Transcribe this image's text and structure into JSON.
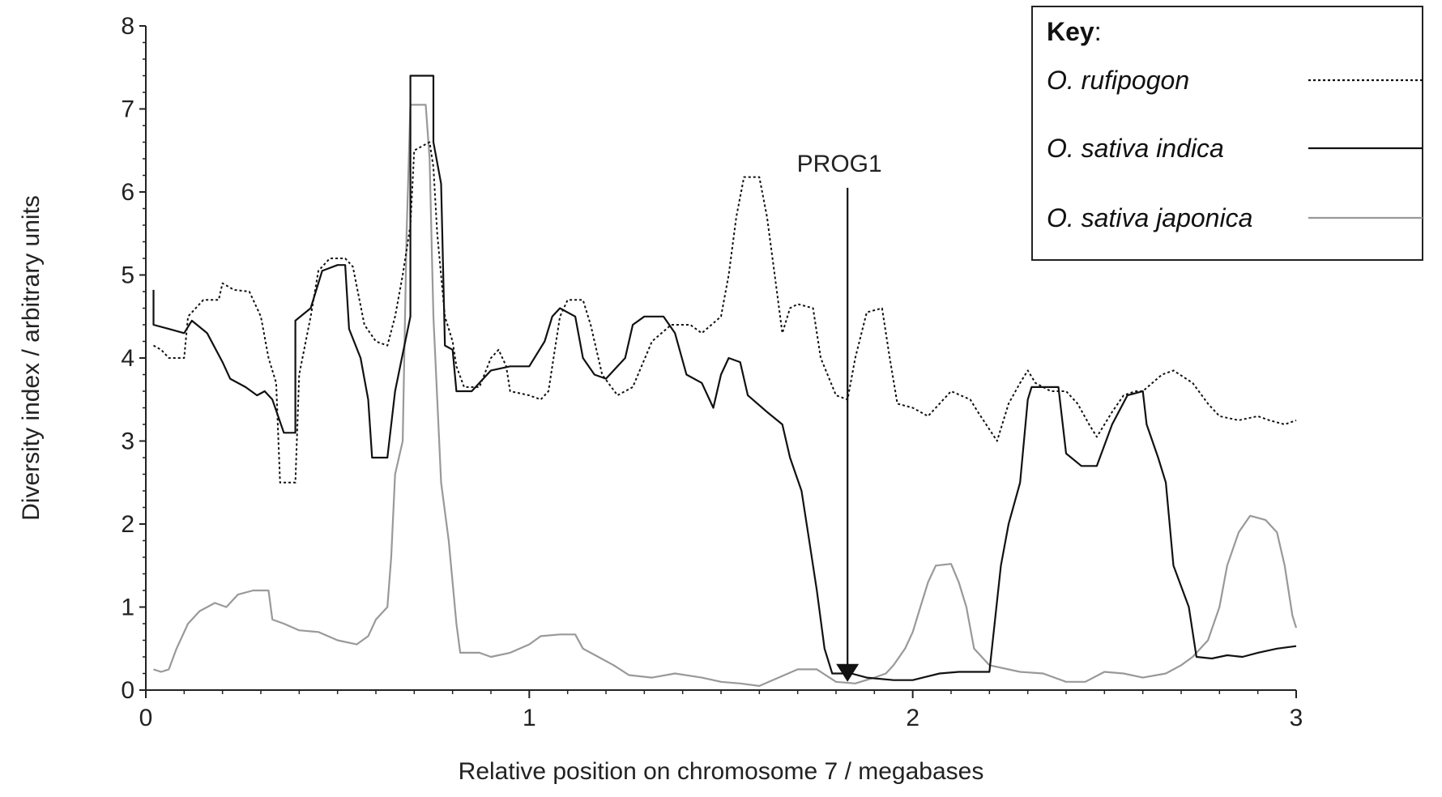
{
  "chart_data": {
    "type": "line",
    "xlabel": "Relative position on chromosome 7 / megabases",
    "ylabel": "Diversity index / arbitrary units",
    "xlim": [
      0,
      3
    ],
    "ylim": [
      0,
      8
    ],
    "x_ticks": [
      0,
      1,
      2,
      3
    ],
    "y_ticks": [
      0,
      1,
      2,
      3,
      4,
      5,
      6,
      7,
      8
    ],
    "grid": false,
    "legend": {
      "title": "Key",
      "title_suffix": ":",
      "placement": "top-right"
    },
    "annotation": {
      "label": "PROG1",
      "x": 1.83,
      "y_start": 6.05,
      "y_end": 0.1
    },
    "series": [
      {
        "name": "O. rufipogon",
        "style": "dotted",
        "color": "#111111",
        "points": [
          [
            0.02,
            4.15
          ],
          [
            0.04,
            4.1
          ],
          [
            0.06,
            4.0
          ],
          [
            0.1,
            4.0
          ],
          [
            0.11,
            4.5
          ],
          [
            0.15,
            4.7
          ],
          [
            0.19,
            4.7
          ],
          [
            0.2,
            4.9
          ],
          [
            0.23,
            4.82
          ],
          [
            0.27,
            4.8
          ],
          [
            0.3,
            4.5
          ],
          [
            0.32,
            4.0
          ],
          [
            0.34,
            3.7
          ],
          [
            0.35,
            2.5
          ],
          [
            0.39,
            2.5
          ],
          [
            0.4,
            3.8
          ],
          [
            0.43,
            4.5
          ],
          [
            0.45,
            5.05
          ],
          [
            0.48,
            5.2
          ],
          [
            0.52,
            5.2
          ],
          [
            0.54,
            5.1
          ],
          [
            0.57,
            4.4
          ],
          [
            0.6,
            4.2
          ],
          [
            0.63,
            4.15
          ],
          [
            0.65,
            4.5
          ],
          [
            0.67,
            5.0
          ],
          [
            0.68,
            5.3
          ],
          [
            0.69,
            5.6
          ],
          [
            0.7,
            6.5
          ],
          [
            0.72,
            6.55
          ],
          [
            0.74,
            6.6
          ],
          [
            0.75,
            6.3
          ],
          [
            0.76,
            5.5
          ],
          [
            0.78,
            4.5
          ],
          [
            0.8,
            4.2
          ],
          [
            0.81,
            3.9
          ],
          [
            0.83,
            3.65
          ],
          [
            0.87,
            3.65
          ],
          [
            0.9,
            4.0
          ],
          [
            0.92,
            4.1
          ],
          [
            0.94,
            3.9
          ],
          [
            0.95,
            3.6
          ],
          [
            1.0,
            3.55
          ],
          [
            1.03,
            3.5
          ],
          [
            1.05,
            3.6
          ],
          [
            1.08,
            4.5
          ],
          [
            1.1,
            4.7
          ],
          [
            1.14,
            4.7
          ],
          [
            1.16,
            4.4
          ],
          [
            1.19,
            3.8
          ],
          [
            1.23,
            3.55
          ],
          [
            1.27,
            3.65
          ],
          [
            1.32,
            4.2
          ],
          [
            1.37,
            4.4
          ],
          [
            1.42,
            4.4
          ],
          [
            1.45,
            4.3
          ],
          [
            1.5,
            4.5
          ],
          [
            1.52,
            5.0
          ],
          [
            1.54,
            5.7
          ],
          [
            1.56,
            6.18
          ],
          [
            1.6,
            6.18
          ],
          [
            1.62,
            5.7
          ],
          [
            1.64,
            5.0
          ],
          [
            1.66,
            4.3
          ],
          [
            1.68,
            4.6
          ],
          [
            1.7,
            4.65
          ],
          [
            1.74,
            4.6
          ],
          [
            1.76,
            4.0
          ],
          [
            1.8,
            3.55
          ],
          [
            1.83,
            3.5
          ],
          [
            1.85,
            4.0
          ],
          [
            1.88,
            4.55
          ],
          [
            1.92,
            4.6
          ],
          [
            1.94,
            4.0
          ],
          [
            1.96,
            3.45
          ],
          [
            2.0,
            3.4
          ],
          [
            2.04,
            3.3
          ],
          [
            2.07,
            3.45
          ],
          [
            2.1,
            3.6
          ],
          [
            2.15,
            3.5
          ],
          [
            2.17,
            3.35
          ],
          [
            2.22,
            3.0
          ],
          [
            2.25,
            3.45
          ],
          [
            2.28,
            3.7
          ],
          [
            2.3,
            3.85
          ],
          [
            2.32,
            3.7
          ],
          [
            2.36,
            3.6
          ],
          [
            2.4,
            3.6
          ],
          [
            2.43,
            3.45
          ],
          [
            2.46,
            3.2
          ],
          [
            2.48,
            3.05
          ],
          [
            2.52,
            3.35
          ],
          [
            2.55,
            3.55
          ],
          [
            2.58,
            3.6
          ],
          [
            2.6,
            3.6
          ],
          [
            2.65,
            3.8
          ],
          [
            2.68,
            3.85
          ],
          [
            2.73,
            3.7
          ],
          [
            2.77,
            3.45
          ],
          [
            2.8,
            3.3
          ],
          [
            2.85,
            3.25
          ],
          [
            2.9,
            3.3
          ],
          [
            2.93,
            3.25
          ],
          [
            2.97,
            3.2
          ],
          [
            3.0,
            3.25
          ]
        ]
      },
      {
        "name": "O. sativa indica",
        "style": "solid",
        "color": "#111111",
        "points": [
          [
            0.02,
            4.82
          ],
          [
            0.02,
            4.4
          ],
          [
            0.06,
            4.35
          ],
          [
            0.1,
            4.3
          ],
          [
            0.12,
            4.45
          ],
          [
            0.16,
            4.3
          ],
          [
            0.2,
            3.95
          ],
          [
            0.22,
            3.75
          ],
          [
            0.26,
            3.65
          ],
          [
            0.29,
            3.55
          ],
          [
            0.31,
            3.6
          ],
          [
            0.33,
            3.5
          ],
          [
            0.36,
            3.1
          ],
          [
            0.39,
            3.1
          ],
          [
            0.39,
            4.45
          ],
          [
            0.43,
            4.6
          ],
          [
            0.46,
            5.05
          ],
          [
            0.5,
            5.12
          ],
          [
            0.52,
            5.12
          ],
          [
            0.53,
            4.35
          ],
          [
            0.56,
            4.0
          ],
          [
            0.58,
            3.5
          ],
          [
            0.59,
            2.8
          ],
          [
            0.63,
            2.8
          ],
          [
            0.65,
            3.6
          ],
          [
            0.67,
            4.05
          ],
          [
            0.69,
            4.5
          ],
          [
            0.69,
            7.4
          ],
          [
            0.75,
            7.4
          ],
          [
            0.75,
            6.6
          ],
          [
            0.77,
            6.1
          ],
          [
            0.78,
            4.15
          ],
          [
            0.8,
            4.1
          ],
          [
            0.81,
            3.6
          ],
          [
            0.85,
            3.6
          ],
          [
            0.9,
            3.85
          ],
          [
            0.95,
            3.9
          ],
          [
            1.0,
            3.9
          ],
          [
            1.04,
            4.2
          ],
          [
            1.06,
            4.5
          ],
          [
            1.08,
            4.6
          ],
          [
            1.12,
            4.5
          ],
          [
            1.14,
            4.0
          ],
          [
            1.17,
            3.8
          ],
          [
            1.2,
            3.75
          ],
          [
            1.25,
            4.0
          ],
          [
            1.27,
            4.4
          ],
          [
            1.3,
            4.5
          ],
          [
            1.35,
            4.5
          ],
          [
            1.38,
            4.3
          ],
          [
            1.41,
            3.8
          ],
          [
            1.45,
            3.7
          ],
          [
            1.48,
            3.4
          ],
          [
            1.5,
            3.8
          ],
          [
            1.52,
            4.0
          ],
          [
            1.55,
            3.95
          ],
          [
            1.57,
            3.55
          ],
          [
            1.62,
            3.35
          ],
          [
            1.66,
            3.2
          ],
          [
            1.68,
            2.8
          ],
          [
            1.71,
            2.4
          ],
          [
            1.73,
            1.8
          ],
          [
            1.75,
            1.2
          ],
          [
            1.77,
            0.5
          ],
          [
            1.79,
            0.2
          ],
          [
            1.84,
            0.2
          ],
          [
            1.88,
            0.15
          ],
          [
            1.95,
            0.12
          ],
          [
            2.0,
            0.12
          ],
          [
            2.07,
            0.2
          ],
          [
            2.12,
            0.22
          ],
          [
            2.2,
            0.22
          ],
          [
            2.23,
            1.5
          ],
          [
            2.25,
            2.0
          ],
          [
            2.28,
            2.5
          ],
          [
            2.3,
            3.5
          ],
          [
            2.31,
            3.65
          ],
          [
            2.38,
            3.65
          ],
          [
            2.4,
            2.85
          ],
          [
            2.44,
            2.7
          ],
          [
            2.48,
            2.7
          ],
          [
            2.52,
            3.2
          ],
          [
            2.56,
            3.55
          ],
          [
            2.6,
            3.6
          ],
          [
            2.61,
            3.2
          ],
          [
            2.64,
            2.8
          ],
          [
            2.66,
            2.5
          ],
          [
            2.68,
            1.5
          ],
          [
            2.72,
            1.0
          ],
          [
            2.74,
            0.4
          ],
          [
            2.78,
            0.38
          ],
          [
            2.82,
            0.42
          ],
          [
            2.86,
            0.4
          ],
          [
            2.9,
            0.45
          ],
          [
            2.95,
            0.5
          ],
          [
            3.0,
            0.53
          ]
        ]
      },
      {
        "name": "O. sativa japonica",
        "style": "solid",
        "color": "#999999",
        "points": [
          [
            0.02,
            0.25
          ],
          [
            0.04,
            0.22
          ],
          [
            0.06,
            0.25
          ],
          [
            0.08,
            0.5
          ],
          [
            0.11,
            0.8
          ],
          [
            0.14,
            0.95
          ],
          [
            0.18,
            1.05
          ],
          [
            0.21,
            1.0
          ],
          [
            0.24,
            1.15
          ],
          [
            0.28,
            1.2
          ],
          [
            0.32,
            1.2
          ],
          [
            0.33,
            0.85
          ],
          [
            0.36,
            0.8
          ],
          [
            0.4,
            0.72
          ],
          [
            0.45,
            0.7
          ],
          [
            0.5,
            0.6
          ],
          [
            0.55,
            0.55
          ],
          [
            0.58,
            0.65
          ],
          [
            0.6,
            0.85
          ],
          [
            0.63,
            1.0
          ],
          [
            0.64,
            1.6
          ],
          [
            0.65,
            2.6
          ],
          [
            0.67,
            3.0
          ],
          [
            0.68,
            5.5
          ],
          [
            0.69,
            7.05
          ],
          [
            0.73,
            7.05
          ],
          [
            0.74,
            6.4
          ],
          [
            0.75,
            4.5
          ],
          [
            0.77,
            2.5
          ],
          [
            0.79,
            1.8
          ],
          [
            0.81,
            0.8
          ],
          [
            0.82,
            0.45
          ],
          [
            0.87,
            0.45
          ],
          [
            0.9,
            0.4
          ],
          [
            0.95,
            0.45
          ],
          [
            1.0,
            0.55
          ],
          [
            1.03,
            0.65
          ],
          [
            1.08,
            0.67
          ],
          [
            1.12,
            0.67
          ],
          [
            1.14,
            0.5
          ],
          [
            1.18,
            0.4
          ],
          [
            1.22,
            0.3
          ],
          [
            1.26,
            0.18
          ],
          [
            1.32,
            0.15
          ],
          [
            1.38,
            0.2
          ],
          [
            1.45,
            0.15
          ],
          [
            1.5,
            0.1
          ],
          [
            1.55,
            0.08
          ],
          [
            1.6,
            0.05
          ],
          [
            1.65,
            0.15
          ],
          [
            1.7,
            0.25
          ],
          [
            1.75,
            0.25
          ],
          [
            1.8,
            0.1
          ],
          [
            1.85,
            0.08
          ],
          [
            1.9,
            0.15
          ],
          [
            1.93,
            0.2
          ],
          [
            1.95,
            0.3
          ],
          [
            1.98,
            0.5
          ],
          [
            2.0,
            0.7
          ],
          [
            2.02,
            1.0
          ],
          [
            2.04,
            1.3
          ],
          [
            2.06,
            1.5
          ],
          [
            2.1,
            1.52
          ],
          [
            2.12,
            1.3
          ],
          [
            2.14,
            1.0
          ],
          [
            2.16,
            0.5
          ],
          [
            2.2,
            0.3
          ],
          [
            2.28,
            0.22
          ],
          [
            2.34,
            0.2
          ],
          [
            2.4,
            0.1
          ],
          [
            2.45,
            0.1
          ],
          [
            2.5,
            0.22
          ],
          [
            2.55,
            0.2
          ],
          [
            2.6,
            0.15
          ],
          [
            2.66,
            0.2
          ],
          [
            2.7,
            0.3
          ],
          [
            2.73,
            0.4
          ],
          [
            2.77,
            0.6
          ],
          [
            2.8,
            1.0
          ],
          [
            2.82,
            1.5
          ],
          [
            2.85,
            1.9
          ],
          [
            2.88,
            2.1
          ],
          [
            2.92,
            2.05
          ],
          [
            2.95,
            1.9
          ],
          [
            2.97,
            1.5
          ],
          [
            2.99,
            0.9
          ],
          [
            3.0,
            0.75
          ]
        ]
      }
    ]
  }
}
